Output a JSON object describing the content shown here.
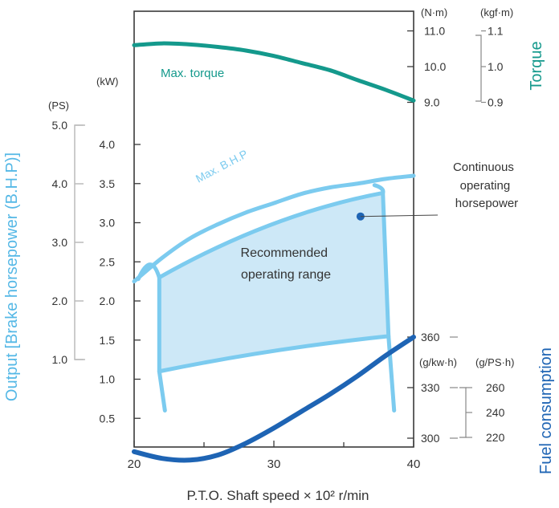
{
  "chart_data": {
    "type": "line",
    "xlabel": "P.T.O. Shaft speed × 10² r/min",
    "x_ticks": [
      "20",
      "30",
      "40"
    ],
    "xlim": [
      20,
      40
    ],
    "axes": {
      "kw": {
        "unit": "(kW)",
        "ticks": [
          "0.5",
          "1.0",
          "1.5",
          "2.0",
          "2.5",
          "3.0",
          "3.5",
          "4.0"
        ]
      },
      "ps": {
        "unit": "(PS)",
        "ticks": [
          "1.0",
          "2.0",
          "3.0",
          "4.0",
          "5.0"
        ]
      },
      "nm": {
        "unit": "(N·m)",
        "ticks": [
          "9.0",
          "10.0",
          "11.0"
        ]
      },
      "kgfm": {
        "unit": "(kgf·m)",
        "ticks": [
          "0.9",
          "1.0",
          "1.1"
        ]
      },
      "gkwh": {
        "unit": "(g/kw·h)",
        "ticks": [
          "300",
          "330",
          "360"
        ]
      },
      "gpsh": {
        "unit": "(g/PS·h)",
        "ticks": [
          "220",
          "240",
          "260"
        ]
      }
    },
    "axis_titles": {
      "output": "Output [Brake horsepower (B.H.P)]",
      "torque": "Torque",
      "fuel": "Fuel consumption"
    },
    "series": [
      {
        "name": "Max. torque",
        "unit": "N·m",
        "x": [
          20,
          22,
          24,
          26,
          28,
          30,
          32,
          34,
          36,
          38,
          40
        ],
        "y": [
          10.6,
          10.65,
          10.62,
          10.55,
          10.45,
          10.3,
          10.1,
          9.9,
          9.62,
          9.35,
          9.05
        ]
      },
      {
        "name": "Max. B.H.P",
        "unit": "kW",
        "x": [
          20,
          22,
          24,
          26,
          28,
          30,
          32,
          34,
          36,
          38,
          40
        ],
        "y": [
          2.25,
          2.55,
          2.8,
          2.98,
          3.13,
          3.25,
          3.37,
          3.45,
          3.5,
          3.56,
          3.6
        ]
      },
      {
        "name": "Fuel consumption",
        "unit": "g/kw·h",
        "x": [
          20,
          22,
          24,
          26,
          28,
          30,
          32,
          34,
          36,
          38,
          40
        ],
        "y": [
          292,
          288,
          287,
          290,
          297,
          306,
          316,
          326,
          337,
          349,
          360
        ]
      }
    ],
    "annotations": {
      "continuous": "Continuous operating horsepower",
      "continuous_point": {
        "x": 36.2,
        "y": 3.08
      },
      "range_label": "Recommended operating range",
      "range_corners": {
        "x": [
          21.8,
          37.8
        ],
        "y_top": [
          2.3,
          3.38
        ],
        "y_bottom": [
          1.1,
          1.55
        ]
      }
    },
    "colors": {
      "torque": "#14998c",
      "bhp": "#7ccbef",
      "fuel": "#1e64b4",
      "region": "#cde8f7",
      "axis_light": "#bbbbbb",
      "output_title": "#55b8e6"
    }
  }
}
